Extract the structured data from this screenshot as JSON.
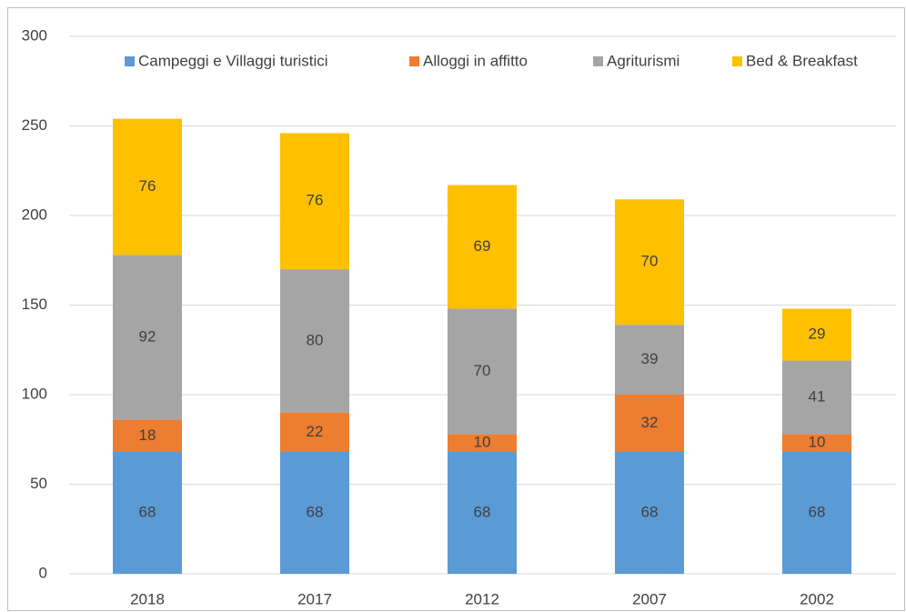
{
  "chart_data": {
    "type": "stacked_bar",
    "categories": [
      "2018",
      "2017",
      "2012",
      "2007",
      "2002"
    ],
    "series": [
      {
        "name": "Campeggi e Villaggi turistici",
        "color": "#5b9bd5",
        "values": [
          68,
          68,
          68,
          68,
          68
        ]
      },
      {
        "name": "Alloggi in affitto",
        "color": "#ed7d31",
        "values": [
          18,
          22,
          10,
          32,
          10
        ]
      },
      {
        "name": "Agriturismi",
        "color": "#a5a5a5",
        "values": [
          92,
          80,
          70,
          39,
          41
        ]
      },
      {
        "name": "Bed & Breakfast",
        "color": "#ffc000",
        "values": [
          76,
          76,
          69,
          70,
          29
        ]
      }
    ],
    "ylim": [
      0,
      300
    ],
    "yticks": [
      0,
      50,
      100,
      150,
      200,
      250,
      300
    ],
    "grid": true,
    "legend": "top"
  }
}
